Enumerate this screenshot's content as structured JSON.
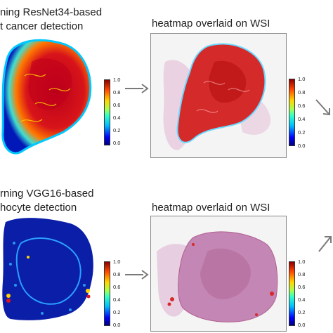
{
  "top_row": {
    "left_title_line1": "ning ResNet34-based",
    "left_title_line2": "t cancer detection",
    "right_title": "heatmap overlaid on WSI",
    "colorbar_ticks": [
      "1.0",
      "0.8",
      "0.6",
      "0.4",
      "0.2",
      "0.0"
    ]
  },
  "bottom_row": {
    "left_title_line1": "rning VGG16-based",
    "left_title_line2": "hocyte detection",
    "right_title": "heatmap overlaid on WSI",
    "colorbar_ticks": [
      "1.0",
      "0.8",
      "0.6",
      "0.4",
      "0.2",
      "0.0"
    ]
  },
  "colors": {
    "arrow": "#7a7a7a",
    "heat_high": "#c0131a",
    "heat_low": "#0a1ea8",
    "tissue": "#c78fb7"
  }
}
